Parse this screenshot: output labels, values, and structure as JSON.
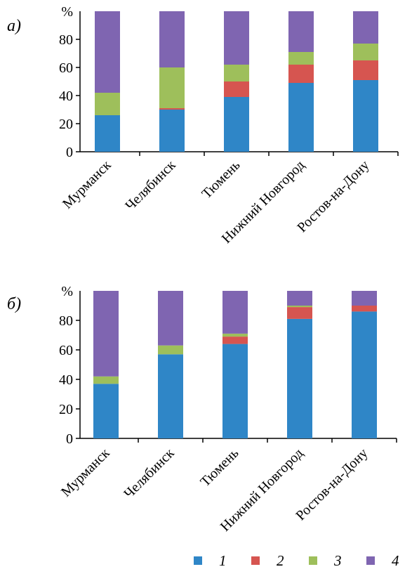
{
  "chart_data": [
    {
      "type": "bar",
      "stacked": true,
      "panel_label": "а)",
      "ylabel": "%",
      "ylim": [
        0,
        100
      ],
      "yticks": [
        0,
        20,
        40,
        60,
        80
      ],
      "categories": [
        "Мурманск",
        "Челябинск",
        "Тюмень",
        "Нижний Новгород",
        "Ростов-на-Дону"
      ],
      "series": [
        {
          "name": "1",
          "values": [
            26,
            30,
            39,
            49,
            51
          ]
        },
        {
          "name": "2",
          "values": [
            0,
            1,
            11,
            13,
            14
          ]
        },
        {
          "name": "3",
          "values": [
            16,
            29,
            12,
            9,
            12
          ]
        },
        {
          "name": "4",
          "values": [
            58,
            40,
            38,
            29,
            23
          ]
        }
      ]
    },
    {
      "type": "bar",
      "stacked": true,
      "panel_label": "б)",
      "ylabel": "%",
      "ylim": [
        0,
        100
      ],
      "yticks": [
        0,
        20,
        40,
        60,
        80
      ],
      "categories": [
        "Мурманск",
        "Челябинск",
        "Тюмень",
        "Нижний Новгород",
        "Ростов-на-Дону"
      ],
      "series": [
        {
          "name": "1",
          "values": [
            37,
            57,
            64,
            81,
            86
          ]
        },
        {
          "name": "2",
          "values": [
            0,
            0,
            5,
            8,
            4
          ]
        },
        {
          "name": "3",
          "values": [
            5,
            6,
            2,
            1,
            0
          ]
        },
        {
          "name": "4",
          "values": [
            58,
            37,
            29,
            10,
            10
          ]
        }
      ]
    }
  ],
  "colors": [
    "#2f86c7",
    "#d65550",
    "#9ebf5b",
    "#7f65b1"
  ],
  "legend": {
    "position": "bottom",
    "items": [
      "1",
      "2",
      "3",
      "4"
    ]
  }
}
